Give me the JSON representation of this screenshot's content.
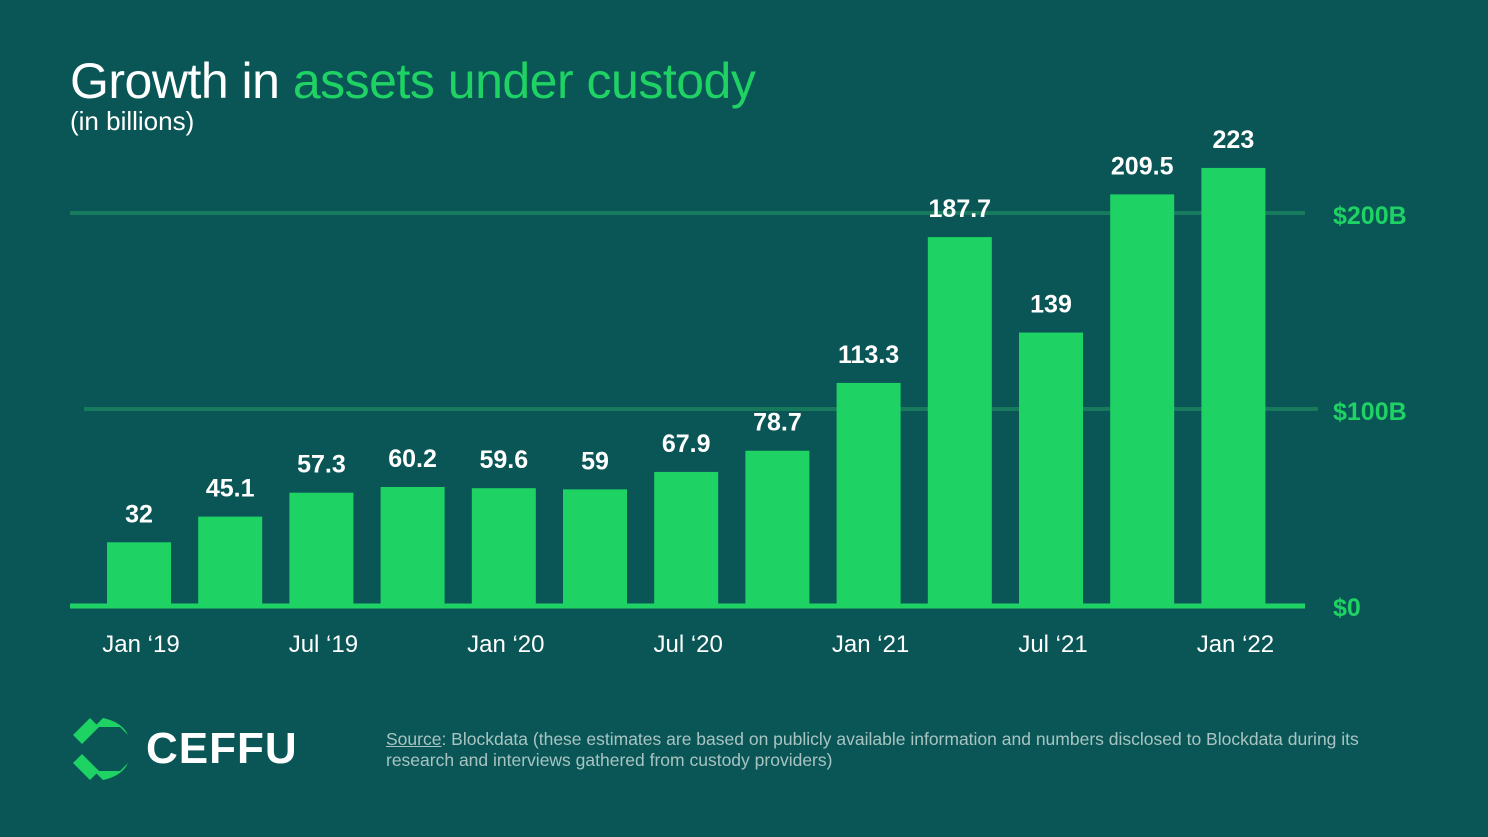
{
  "chart_data": {
    "type": "bar",
    "title_prefix": "Growth in ",
    "title_highlight": "assets under custody",
    "subtitle": "(in billions)",
    "values": [
      32,
      45.1,
      57.3,
      60.2,
      59.6,
      59,
      67.9,
      78.7,
      113.3,
      187.7,
      139,
      209.5,
      223
    ],
    "data_labels": [
      "32",
      "45.1",
      "57.3",
      "60.2",
      "59.6",
      "59",
      "67.9",
      "78.7",
      "113.3",
      "187.7",
      "139",
      "209.5",
      "223"
    ],
    "xticks": [
      {
        "index": 0,
        "label": "Jan ‘19"
      },
      {
        "index": 2,
        "label": "Jul ‘19"
      },
      {
        "index": 4,
        "label": "Jan ‘20"
      },
      {
        "index": 6,
        "label": "Jul ‘20"
      },
      {
        "index": 8,
        "label": "Jan ‘21"
      },
      {
        "index": 10,
        "label": "Jul ‘21"
      },
      {
        "index": 12,
        "label": "Jan ‘22"
      }
    ],
    "yticks": [
      {
        "value": 0,
        "label": "$0"
      },
      {
        "value": 100,
        "label": "$100B"
      },
      {
        "value": 200,
        "label": "$200B"
      }
    ],
    "ylim": [
      0,
      230
    ],
    "grid": true,
    "yaxis_position": "right",
    "colors": {
      "bar": "#1ed264",
      "grid": "#177a5c",
      "background": "#0a5657",
      "label": "#ffffff",
      "ytick": "#1ed264"
    }
  },
  "footer": {
    "logo_text": "CEFFU",
    "source_label": "Source",
    "source_text": ": Blockdata (these estimates are based on publicly available information and numbers disclosed to Blockdata during its research and interviews gathered from custody providers)"
  }
}
